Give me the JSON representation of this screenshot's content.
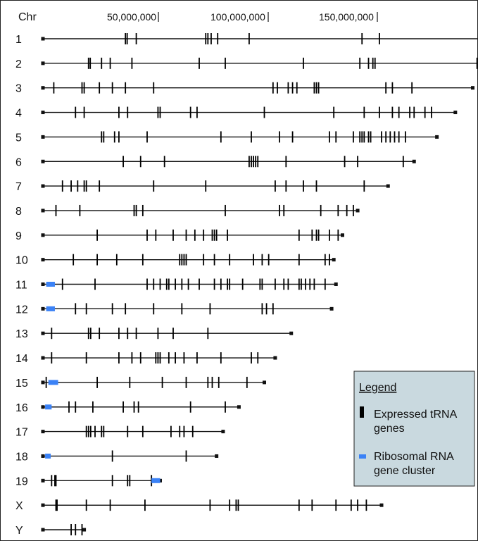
{
  "axis": {
    "header": "Chr",
    "coordinates": [
      "50,000,000",
      "100,000,000",
      "150,000,000"
    ]
  },
  "legend": {
    "title": "Legend",
    "trna": [
      "Expressed tRNA",
      "genes"
    ],
    "rrna": [
      "Ribosomal RNA",
      "gene cluster"
    ]
  },
  "colors": {
    "line": "#111111",
    "trna": "#000000",
    "rrna": "#3b82f6",
    "legend_bg": "#c9d9df"
  },
  "chart_data": {
    "type": "diagram",
    "units": "bp",
    "chromosomes": [
      {
        "name": "1",
        "length": 248900000,
        "rrna": [],
        "trna": [
          38000000,
          38800000,
          43000000,
          75000000,
          76000000,
          77500000,
          80500000,
          95000000,
          147000000,
          155000000,
          218000000,
          218900000,
          222000000,
          226000000,
          231000000,
          238000000,
          244000000
        ]
      },
      {
        "name": "2",
        "length": 242000000,
        "rrna": [],
        "trna": [
          21000000,
          21800000,
          27000000,
          31000000,
          41000000,
          72000000,
          84000000,
          120000000,
          146000000,
          150000000,
          152000000,
          153000000,
          200000000,
          202000000,
          203000000,
          204000000,
          220000000
        ]
      },
      {
        "name": "3",
        "length": 198000000,
        "rrna": [],
        "trna": [
          5000000,
          18000000,
          19000000,
          26000000,
          32000000,
          38000000,
          51000000,
          106000000,
          108000000,
          113000000,
          115000000,
          117000000,
          125000000,
          126000000,
          127000000,
          158000000,
          161000000,
          170000000
        ]
      },
      {
        "name": "4",
        "length": 190000000,
        "rrna": [],
        "trna": [
          15000000,
          19000000,
          35000000,
          39000000,
          53000000,
          54000000,
          68000000,
          71000000,
          102000000,
          134000000,
          148000000,
          155000000,
          161000000,
          164000000,
          169000000,
          171000000,
          176000000,
          179000000
        ]
      },
      {
        "name": "5",
        "length": 181500000,
        "rrna": [],
        "trna": [
          27000000,
          28000000,
          33000000,
          35000000,
          48000000,
          82000000,
          96000000,
          109000000,
          115000000,
          132000000,
          135000000,
          143000000,
          146000000,
          147000000,
          148000000,
          150000000,
          151000000,
          156000000,
          158000000,
          160000000,
          162000000,
          164000000,
          167000000
        ]
      },
      {
        "name": "6",
        "length": 171000000,
        "rrna": [],
        "trna": [
          37000000,
          45000000,
          56000000,
          95000000,
          96000000,
          97000000,
          98000000,
          99000000,
          112000000,
          139000000,
          145000000,
          166000000
        ]
      },
      {
        "name": "7",
        "length": 159000000,
        "rrna": [],
        "trna": [
          9000000,
          13000000,
          16000000,
          19000000,
          20000000,
          26000000,
          51000000,
          75000000,
          107000000,
          112000000,
          120000000,
          126000000,
          148000000
        ]
      },
      {
        "name": "8",
        "length": 145000000,
        "rrna": [],
        "trna": [
          6000000,
          17000000,
          42000000,
          43000000,
          46000000,
          84000000,
          109000000,
          111000000,
          128000000,
          136000000,
          140000000,
          143000000
        ]
      },
      {
        "name": "9",
        "length": 138000000,
        "rrna": [],
        "trna": [
          25000000,
          48000000,
          52000000,
          60000000,
          66000000,
          70000000,
          74000000,
          78000000,
          79000000,
          80000000,
          85000000,
          118000000,
          124000000,
          126000000,
          127000000,
          132000000,
          136000000
        ]
      },
      {
        "name": "10",
        "length": 134000000,
        "rrna": [],
        "trna": [
          14000000,
          25000000,
          34000000,
          46000000,
          63000000,
          64000000,
          65000000,
          66000000,
          74000000,
          79000000,
          86000000,
          97000000,
          101000000,
          104000000,
          118000000,
          130000000,
          132000000
        ]
      },
      {
        "name": "11",
        "length": 135000000,
        "rrna": [
          [
            1500000,
            5500000
          ]
        ],
        "trna": [
          9000000,
          24000000,
          48000000,
          51000000,
          54000000,
          57000000,
          58000000,
          61000000,
          64000000,
          67000000,
          72000000,
          79000000,
          82000000,
          85000000,
          86000000,
          92000000,
          100000000,
          101000000,
          107000000,
          111000000,
          113000000,
          118000000,
          119000000,
          121000000,
          123000000,
          125000000,
          130000000
        ]
      },
      {
        "name": "12",
        "length": 133000000,
        "rrna": [
          [
            1500000,
            5500000
          ]
        ],
        "trna": [
          15000000,
          20000000,
          32000000,
          38000000,
          51000000,
          64000000,
          77000000,
          101000000,
          103000000,
          106000000
        ]
      },
      {
        "name": "13",
        "length": 114400000,
        "rrna": [],
        "trna": [
          4000000,
          21000000,
          22000000,
          26000000,
          35000000,
          39000000,
          43000000,
          53000000,
          60000000,
          76000000
        ]
      },
      {
        "name": "14",
        "length": 107000000,
        "rrna": [],
        "trna": [
          4000000,
          20000000,
          35000000,
          41000000,
          45000000,
          52000000,
          53000000,
          54000000,
          58000000,
          61000000,
          65000000,
          71000000,
          82000000,
          96000000,
          99000000
        ]
      },
      {
        "name": "15",
        "length": 102000000,
        "rrna": [
          [
            2500000,
            7000000
          ]
        ],
        "trna": [
          1500000,
          25000000,
          40000000,
          55000000,
          66000000,
          76000000,
          78000000,
          81000000,
          94000000
        ]
      },
      {
        "name": "16",
        "length": 90300000,
        "rrna": [
          [
            1000000,
            4000000
          ]
        ],
        "trna": [
          12000000,
          15000000,
          23000000,
          37000000,
          42000000,
          44000000,
          68000000,
          84000000
        ]
      },
      {
        "name": "17",
        "length": 83000000,
        "rrna": [],
        "trna": [
          20000000,
          21000000,
          22000000,
          24000000,
          27000000,
          28000000,
          39000000,
          46000000,
          59000000,
          63000000,
          65000000,
          69000000
        ]
      },
      {
        "name": "18",
        "length": 80000000,
        "rrna": [
          [
            1000000,
            3500000
          ]
        ],
        "trna": [
          32000000,
          66000000
        ]
      },
      {
        "name": "19",
        "length": 54000000,
        "rrna": [
          [
            50000000,
            54000000
          ]
        ],
        "trna": [
          4000000,
          5500000,
          6000000,
          32000000,
          39000000,
          40000000,
          50000000
        ]
      },
      {
        "name": "X",
        "length": 156000000,
        "rrna": [],
        "trna": [
          6000000,
          6500000,
          20000000,
          31000000,
          47000000,
          77000000,
          86000000,
          89000000,
          90000000,
          118000000,
          124000000,
          135000000,
          142000000,
          145000000,
          149000000
        ]
      },
      {
        "name": "Y",
        "length": 19000000,
        "rrna": [],
        "trna": [
          13000000,
          15000000,
          18000000
        ]
      }
    ]
  }
}
